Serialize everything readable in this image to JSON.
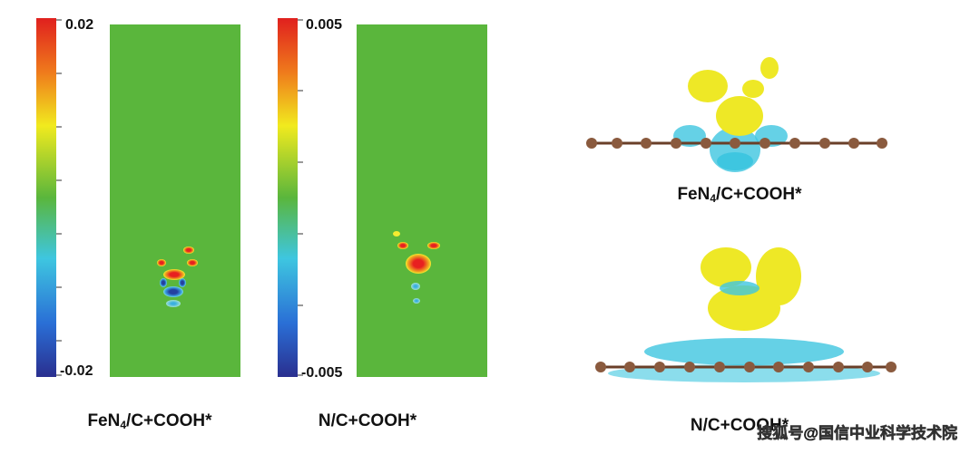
{
  "panels": [
    {
      "colorbar": {
        "max": "0.02",
        "min": "-0.02"
      },
      "caption": {
        "prefix": "FeN",
        "sub": "4",
        "suffix": "/C+COOH*"
      }
    },
    {
      "colorbar": {
        "max": "0.005",
        "min": "-0.005"
      },
      "caption": {
        "prefix": "N/C+COOH*"
      }
    }
  ],
  "structures": [
    {
      "caption": {
        "prefix": "FeN",
        "sub": "4",
        "suffix": "/C+COOH*"
      }
    },
    {
      "caption": {
        "prefix": "N/C+COOH*"
      }
    }
  ],
  "watermark": "搜狐号@国信中业科学技术院"
}
